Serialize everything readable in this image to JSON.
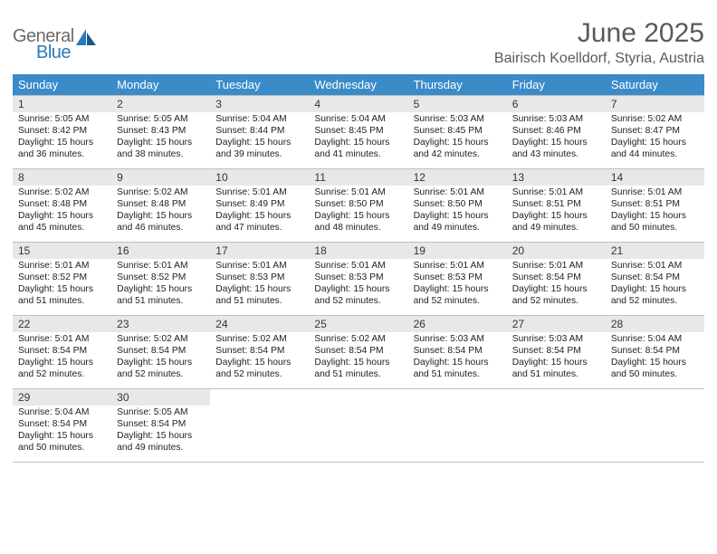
{
  "logo": {
    "general": "General",
    "blue": "Blue"
  },
  "title": "June 2025",
  "location": "Bairisch Koelldorf, Styria, Austria",
  "colors": {
    "header_bg": "#3b8bc9",
    "header_text": "#ffffff",
    "daynum_bg": "#e8e8e8",
    "title_color": "#5a5a5a",
    "logo_gray": "#6b6b6b",
    "logo_blue": "#2a7ab9",
    "border": "#bfbfbf",
    "body_text": "#222222",
    "background": "#ffffff"
  },
  "weekdays": [
    "Sunday",
    "Monday",
    "Tuesday",
    "Wednesday",
    "Thursday",
    "Friday",
    "Saturday"
  ],
  "weeks": [
    [
      {
        "day": "1",
        "sunrise": "5:05 AM",
        "sunset": "8:42 PM",
        "daylight_h": "15",
        "daylight_m": "36"
      },
      {
        "day": "2",
        "sunrise": "5:05 AM",
        "sunset": "8:43 PM",
        "daylight_h": "15",
        "daylight_m": "38"
      },
      {
        "day": "3",
        "sunrise": "5:04 AM",
        "sunset": "8:44 PM",
        "daylight_h": "15",
        "daylight_m": "39"
      },
      {
        "day": "4",
        "sunrise": "5:04 AM",
        "sunset": "8:45 PM",
        "daylight_h": "15",
        "daylight_m": "41"
      },
      {
        "day": "5",
        "sunrise": "5:03 AM",
        "sunset": "8:45 PM",
        "daylight_h": "15",
        "daylight_m": "42"
      },
      {
        "day": "6",
        "sunrise": "5:03 AM",
        "sunset": "8:46 PM",
        "daylight_h": "15",
        "daylight_m": "43"
      },
      {
        "day": "7",
        "sunrise": "5:02 AM",
        "sunset": "8:47 PM",
        "daylight_h": "15",
        "daylight_m": "44"
      }
    ],
    [
      {
        "day": "8",
        "sunrise": "5:02 AM",
        "sunset": "8:48 PM",
        "daylight_h": "15",
        "daylight_m": "45"
      },
      {
        "day": "9",
        "sunrise": "5:02 AM",
        "sunset": "8:48 PM",
        "daylight_h": "15",
        "daylight_m": "46"
      },
      {
        "day": "10",
        "sunrise": "5:01 AM",
        "sunset": "8:49 PM",
        "daylight_h": "15",
        "daylight_m": "47"
      },
      {
        "day": "11",
        "sunrise": "5:01 AM",
        "sunset": "8:50 PM",
        "daylight_h": "15",
        "daylight_m": "48"
      },
      {
        "day": "12",
        "sunrise": "5:01 AM",
        "sunset": "8:50 PM",
        "daylight_h": "15",
        "daylight_m": "49"
      },
      {
        "day": "13",
        "sunrise": "5:01 AM",
        "sunset": "8:51 PM",
        "daylight_h": "15",
        "daylight_m": "49"
      },
      {
        "day": "14",
        "sunrise": "5:01 AM",
        "sunset": "8:51 PM",
        "daylight_h": "15",
        "daylight_m": "50"
      }
    ],
    [
      {
        "day": "15",
        "sunrise": "5:01 AM",
        "sunset": "8:52 PM",
        "daylight_h": "15",
        "daylight_m": "51"
      },
      {
        "day": "16",
        "sunrise": "5:01 AM",
        "sunset": "8:52 PM",
        "daylight_h": "15",
        "daylight_m": "51"
      },
      {
        "day": "17",
        "sunrise": "5:01 AM",
        "sunset": "8:53 PM",
        "daylight_h": "15",
        "daylight_m": "51"
      },
      {
        "day": "18",
        "sunrise": "5:01 AM",
        "sunset": "8:53 PM",
        "daylight_h": "15",
        "daylight_m": "52"
      },
      {
        "day": "19",
        "sunrise": "5:01 AM",
        "sunset": "8:53 PM",
        "daylight_h": "15",
        "daylight_m": "52"
      },
      {
        "day": "20",
        "sunrise": "5:01 AM",
        "sunset": "8:54 PM",
        "daylight_h": "15",
        "daylight_m": "52"
      },
      {
        "day": "21",
        "sunrise": "5:01 AM",
        "sunset": "8:54 PM",
        "daylight_h": "15",
        "daylight_m": "52"
      }
    ],
    [
      {
        "day": "22",
        "sunrise": "5:01 AM",
        "sunset": "8:54 PM",
        "daylight_h": "15",
        "daylight_m": "52"
      },
      {
        "day": "23",
        "sunrise": "5:02 AM",
        "sunset": "8:54 PM",
        "daylight_h": "15",
        "daylight_m": "52"
      },
      {
        "day": "24",
        "sunrise": "5:02 AM",
        "sunset": "8:54 PM",
        "daylight_h": "15",
        "daylight_m": "52"
      },
      {
        "day": "25",
        "sunrise": "5:02 AM",
        "sunset": "8:54 PM",
        "daylight_h": "15",
        "daylight_m": "51"
      },
      {
        "day": "26",
        "sunrise": "5:03 AM",
        "sunset": "8:54 PM",
        "daylight_h": "15",
        "daylight_m": "51"
      },
      {
        "day": "27",
        "sunrise": "5:03 AM",
        "sunset": "8:54 PM",
        "daylight_h": "15",
        "daylight_m": "51"
      },
      {
        "day": "28",
        "sunrise": "5:04 AM",
        "sunset": "8:54 PM",
        "daylight_h": "15",
        "daylight_m": "50"
      }
    ],
    [
      {
        "day": "29",
        "sunrise": "5:04 AM",
        "sunset": "8:54 PM",
        "daylight_h": "15",
        "daylight_m": "50"
      },
      {
        "day": "30",
        "sunrise": "5:05 AM",
        "sunset": "8:54 PM",
        "daylight_h": "15",
        "daylight_m": "49"
      },
      null,
      null,
      null,
      null,
      null
    ]
  ],
  "labels": {
    "sunrise": "Sunrise:",
    "sunset": "Sunset:",
    "daylight": "Daylight:",
    "hours": "hours",
    "and": "and",
    "minutes": "minutes."
  }
}
